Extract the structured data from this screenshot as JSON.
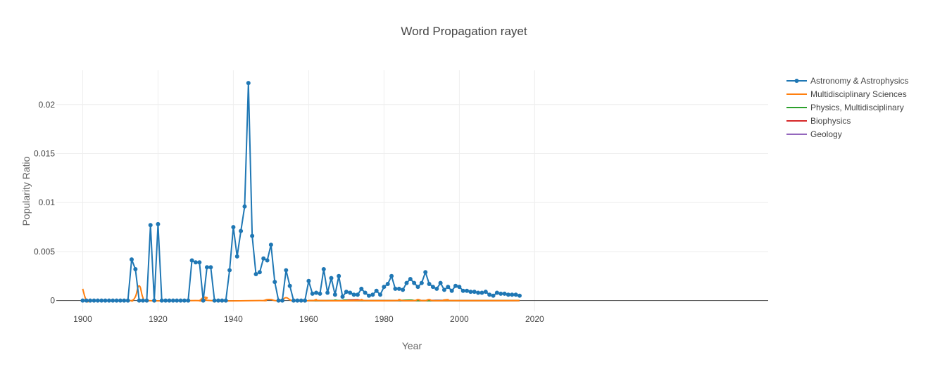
{
  "chart_data": {
    "type": "line",
    "title": "Word Propagation rayet",
    "xlabel": "Year",
    "ylabel": "Popularity Ratio",
    "xlim": [
      1893,
      2082
    ],
    "ylim": [
      -0.0011,
      0.0235
    ],
    "x_ticks": [
      "1900",
      "1920",
      "1940",
      "1960",
      "1980",
      "2000",
      "2020"
    ],
    "y_ticks": [
      "0",
      "0.005",
      "0.01",
      "0.015",
      "0.02"
    ],
    "legend_position": "top-right",
    "grid": true,
    "series": [
      {
        "name": "Astronomy & Astrophysics",
        "color": "#1f77b4",
        "markers": true,
        "points": [
          [
            1900,
            0
          ],
          [
            1901,
            0
          ],
          [
            1902,
            0
          ],
          [
            1903,
            0
          ],
          [
            1904,
            0
          ],
          [
            1905,
            0
          ],
          [
            1906,
            0
          ],
          [
            1907,
            0
          ],
          [
            1908,
            0
          ],
          [
            1909,
            0
          ],
          [
            1910,
            0
          ],
          [
            1911,
            0
          ],
          [
            1912,
            0
          ],
          [
            1913,
            0.0042
          ],
          [
            1914,
            0.0032
          ],
          [
            1915,
            0
          ],
          [
            1916,
            0
          ],
          [
            1917,
            0
          ],
          [
            1918,
            0.0077
          ],
          [
            1919,
            0
          ],
          [
            1920,
            0.0078
          ],
          [
            1921,
            0
          ],
          [
            1922,
            0
          ],
          [
            1923,
            0
          ],
          [
            1924,
            0
          ],
          [
            1925,
            0
          ],
          [
            1926,
            0
          ],
          [
            1927,
            0
          ],
          [
            1928,
            0
          ],
          [
            1929,
            0.0041
          ],
          [
            1930,
            0.0039
          ],
          [
            1931,
            0.0039
          ],
          [
            1932,
            0
          ],
          [
            1933,
            0.0034
          ],
          [
            1934,
            0.0034
          ],
          [
            1935,
            0
          ],
          [
            1936,
            0
          ],
          [
            1937,
            0
          ],
          [
            1938,
            0
          ],
          [
            1939,
            0.0031
          ],
          [
            1940,
            0.0075
          ],
          [
            1941,
            0.0045
          ],
          [
            1942,
            0.0071
          ],
          [
            1943,
            0.0096
          ],
          [
            1944,
            0.0222
          ],
          [
            1945,
            0.0066
          ],
          [
            1946,
            0.0027
          ],
          [
            1947,
            0.0029
          ],
          [
            1948,
            0.0043
          ],
          [
            1949,
            0.0041
          ],
          [
            1950,
            0.0057
          ],
          [
            1951,
            0.0019
          ],
          [
            1952,
            0
          ],
          [
            1953,
            0
          ],
          [
            1954,
            0.0031
          ],
          [
            1955,
            0.0015
          ],
          [
            1956,
            0
          ],
          [
            1957,
            0
          ],
          [
            1958,
            0
          ],
          [
            1959,
            0
          ],
          [
            1960,
            0.002
          ],
          [
            1961,
            0.0007
          ],
          [
            1962,
            0.0008
          ],
          [
            1963,
            0.0007
          ],
          [
            1964,
            0.0032
          ],
          [
            1965,
            0.0008
          ],
          [
            1966,
            0.0023
          ],
          [
            1967,
            0.0006
          ],
          [
            1968,
            0.0025
          ],
          [
            1969,
            0.0004
          ],
          [
            1970,
            0.0009
          ],
          [
            1971,
            0.0008
          ],
          [
            1972,
            0.0006
          ],
          [
            1973,
            0.0006
          ],
          [
            1974,
            0.0012
          ],
          [
            1975,
            0.0008
          ],
          [
            1976,
            0.0005
          ],
          [
            1977,
            0.0006
          ],
          [
            1978,
            0.001
          ],
          [
            1979,
            0.0006
          ],
          [
            1980,
            0.0014
          ],
          [
            1981,
            0.0017
          ],
          [
            1982,
            0.0025
          ],
          [
            1983,
            0.0012
          ],
          [
            1984,
            0.0012
          ],
          [
            1985,
            0.0011
          ],
          [
            1986,
            0.0018
          ],
          [
            1987,
            0.0022
          ],
          [
            1988,
            0.0018
          ],
          [
            1989,
            0.0014
          ],
          [
            1990,
            0.0018
          ],
          [
            1991,
            0.0029
          ],
          [
            1992,
            0.0017
          ],
          [
            1993,
            0.0014
          ],
          [
            1994,
            0.0012
          ],
          [
            1995,
            0.0018
          ],
          [
            1996,
            0.0011
          ],
          [
            1997,
            0.0014
          ],
          [
            1998,
            0.001
          ],
          [
            1999,
            0.0015
          ],
          [
            2000,
            0.0014
          ],
          [
            2001,
            0.001
          ],
          [
            2002,
            0.001
          ],
          [
            2003,
            0.0009
          ],
          [
            2004,
            0.0009
          ],
          [
            2005,
            0.0008
          ],
          [
            2006,
            0.0008
          ],
          [
            2007,
            0.0009
          ],
          [
            2008,
            0.0006
          ],
          [
            2009,
            0.0005
          ],
          [
            2010,
            0.0008
          ],
          [
            2011,
            0.0007
          ],
          [
            2012,
            0.0007
          ],
          [
            2013,
            0.0006
          ],
          [
            2014,
            0.0006
          ],
          [
            2015,
            0.0006
          ],
          [
            2016,
            0.0005
          ]
        ]
      },
      {
        "name": "Multidisciplinary Sciences",
        "color": "#ff7f0e",
        "markers": false,
        "points": [
          [
            1900,
            0.0012
          ],
          [
            1901,
            0
          ],
          [
            1902,
            0
          ],
          [
            1903,
            0
          ],
          [
            1912,
            0
          ],
          [
            1913,
            0
          ],
          [
            1914,
            0.0004
          ],
          [
            1915,
            0.0015
          ],
          [
            1916,
            0.0003
          ],
          [
            1917,
            0
          ],
          [
            1930,
            0
          ],
          [
            1931,
            0
          ],
          [
            1932,
            0.0003
          ],
          [
            1933,
            0.0003
          ],
          [
            1934,
            0
          ],
          [
            1947,
            0
          ],
          [
            1948,
            0
          ],
          [
            1949,
            0.0001
          ],
          [
            1950,
            0.0001
          ],
          [
            1951,
            0
          ],
          [
            1952,
            0
          ],
          [
            1953,
            0.0001
          ],
          [
            1954,
            0.0003
          ],
          [
            1955,
            0.0001
          ],
          [
            1956,
            0
          ],
          [
            1961,
            0
          ],
          [
            1962,
            0.0001
          ],
          [
            1963,
            0
          ],
          [
            1973,
            0
          ],
          [
            1974,
            0.0001
          ],
          [
            1975,
            0
          ],
          [
            1983,
            0
          ],
          [
            1984,
            0.0001
          ],
          [
            1985,
            0
          ],
          [
            1988,
            0
          ],
          [
            1989,
            0.0001
          ],
          [
            1990,
            0
          ],
          [
            1991,
            0
          ],
          [
            1992,
            0.0001
          ],
          [
            1993,
            0
          ],
          [
            1996,
            0
          ],
          [
            1997,
            0.0001
          ],
          [
            1998,
            0
          ],
          [
            2016,
            0
          ]
        ]
      },
      {
        "name": "Physics, Multidisciplinary",
        "color": "#2ca02c",
        "markers": false,
        "points": [
          [
            1960,
            0
          ],
          [
            1966,
            0
          ],
          [
            1967,
            5e-05
          ],
          [
            1968,
            0
          ],
          [
            1969,
            0
          ],
          [
            1970,
            5e-05
          ],
          [
            1971,
            0
          ],
          [
            1986,
            0
          ],
          [
            1987,
            5e-05
          ],
          [
            1988,
            0
          ],
          [
            2016,
            0
          ]
        ]
      },
      {
        "name": "Biophysics",
        "color": "#d62728",
        "markers": false,
        "points": [
          [
            1960,
            0
          ],
          [
            1972,
            0
          ],
          [
            1973,
            8e-05
          ],
          [
            1974,
            0
          ],
          [
            2016,
            0
          ]
        ]
      },
      {
        "name": "Geology",
        "color": "#9467bd",
        "markers": false,
        "points": [
          [
            1960,
            0
          ],
          [
            1993,
            0
          ],
          [
            1994,
            3e-05
          ],
          [
            1995,
            0
          ],
          [
            2016,
            0
          ]
        ]
      }
    ]
  }
}
